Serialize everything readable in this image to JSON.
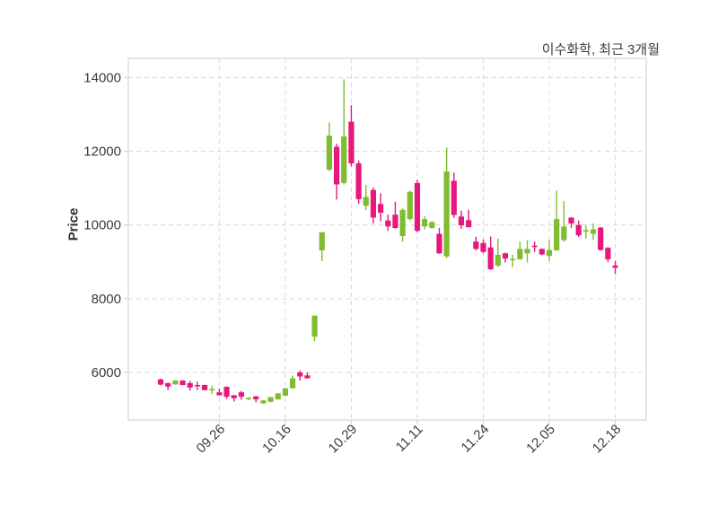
{
  "chart_data": {
    "type": "candlestick",
    "title": "이수화학, 최근 3개월",
    "ylabel": "Price",
    "xlabel": "",
    "y_ticks": [
      6000,
      8000,
      10000,
      12000,
      14000
    ],
    "ylim": [
      4710,
      14520
    ],
    "x_tick_labels": [
      "09.26",
      "10.16",
      "10.29",
      "11.11",
      "11.24",
      "12.05",
      "12.18"
    ],
    "x_tick_indices": [
      8,
      17,
      26,
      35,
      44,
      53,
      62
    ],
    "grid": "dashed-both-axes",
    "legend_position": "none",
    "colors": {
      "up": "#7ebc30",
      "down": "#e6187e",
      "grid": "#d8d8d8",
      "spine": "#d4d4d4",
      "tick_text": "#3a3a3a",
      "title_text": "#3c3c3c",
      "background": "#ffffff"
    },
    "candle_format": [
      "open",
      "high",
      "low",
      "close"
    ],
    "candles": [
      [
        5810,
        5830,
        5650,
        5670
      ],
      [
        5710,
        5720,
        5520,
        5615
      ],
      [
        5675,
        5790,
        5670,
        5780
      ],
      [
        5780,
        5790,
        5650,
        5660
      ],
      [
        5710,
        5770,
        5510,
        5590
      ],
      [
        5660,
        5750,
        5520,
        5640
      ],
      [
        5660,
        5670,
        5510,
        5520
      ],
      [
        5540,
        5640,
        5410,
        5550
      ],
      [
        5460,
        5560,
        5370,
        5380
      ],
      [
        5610,
        5620,
        5280,
        5340
      ],
      [
        5380,
        5390,
        5210,
        5300
      ],
      [
        5460,
        5500,
        5260,
        5340
      ],
      [
        5280,
        5330,
        5250,
        5310
      ],
      [
        5350,
        5360,
        5190,
        5270
      ],
      [
        5160,
        5250,
        5150,
        5240
      ],
      [
        5200,
        5330,
        5190,
        5330
      ],
      [
        5270,
        5440,
        5260,
        5430
      ],
      [
        5370,
        5580,
        5360,
        5570
      ],
      [
        5570,
        5920,
        5560,
        5840
      ],
      [
        6000,
        6050,
        5780,
        5890
      ],
      [
        5920,
        6000,
        5830,
        5840
      ],
      [
        6970,
        7540,
        6850,
        7540
      ],
      [
        9310,
        9810,
        9020,
        9800
      ],
      [
        11500,
        12780,
        11460,
        12420
      ],
      [
        12120,
        12200,
        10690,
        11100
      ],
      [
        11140,
        13950,
        11100,
        12400
      ],
      [
        12800,
        13250,
        11590,
        11670
      ],
      [
        11670,
        11750,
        10570,
        10700
      ],
      [
        10520,
        11090,
        10400,
        10760
      ],
      [
        10950,
        11020,
        10040,
        10200
      ],
      [
        10570,
        10860,
        10100,
        10330
      ],
      [
        10120,
        10280,
        9840,
        9960
      ],
      [
        10280,
        10630,
        9900,
        9920
      ],
      [
        9700,
        10450,
        9550,
        10410
      ],
      [
        10160,
        10930,
        10120,
        10900
      ],
      [
        11140,
        11220,
        9800,
        9840
      ],
      [
        9960,
        10240,
        9880,
        10160
      ],
      [
        9920,
        10100,
        9900,
        10080
      ],
      [
        9760,
        9920,
        9220,
        9230
      ],
      [
        9150,
        12100,
        9100,
        11450
      ],
      [
        11200,
        11420,
        10190,
        10270
      ],
      [
        10230,
        10390,
        9900,
        9990
      ],
      [
        10130,
        10410,
        9935,
        9940
      ],
      [
        9550,
        9680,
        9310,
        9350
      ],
      [
        9510,
        9610,
        9230,
        9270
      ],
      [
        9390,
        9690,
        8780,
        8800
      ],
      [
        8900,
        9630,
        8860,
        9190
      ],
      [
        9230,
        9250,
        8980,
        9090
      ],
      [
        9050,
        9190,
        8860,
        9080
      ],
      [
        9070,
        9550,
        9060,
        9350
      ],
      [
        9230,
        9590,
        8980,
        9350
      ],
      [
        9440,
        9550,
        9270,
        9400
      ],
      [
        9350,
        9360,
        9180,
        9200
      ],
      [
        9160,
        9590,
        9030,
        9320
      ],
      [
        9310,
        10930,
        9300,
        10160
      ],
      [
        9590,
        10650,
        9550,
        9960
      ],
      [
        10200,
        10210,
        9920,
        10040
      ],
      [
        10000,
        10120,
        9670,
        9720
      ],
      [
        9820,
        10000,
        9630,
        9860
      ],
      [
        9760,
        10040,
        9590,
        9880
      ],
      [
        9930,
        9940,
        9300,
        9320
      ],
      [
        9380,
        9400,
        8990,
        9070
      ],
      [
        8900,
        9030,
        8670,
        8840
      ]
    ]
  }
}
